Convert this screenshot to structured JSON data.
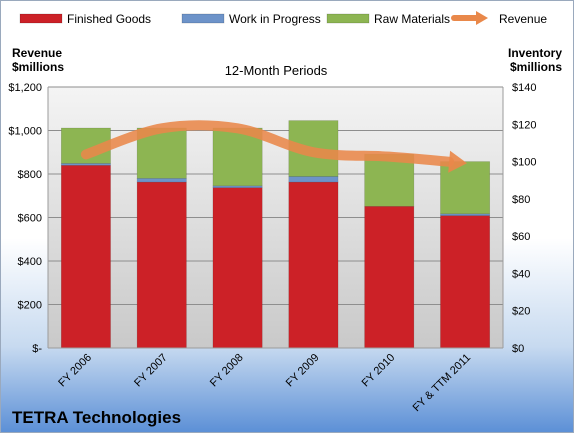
{
  "chart_data": {
    "type": "bar",
    "subtitle": "12-Month Periods",
    "company": "TETRA Technologies",
    "left_axis_label_line1": "Revenue",
    "left_axis_label_line2": "$millions",
    "right_axis_label_line1": "Inventory",
    "right_axis_label_line2": "$millions",
    "categories": [
      "FY 2006",
      "FY 2007",
      "FY 2008",
      "FY 2009",
      "FY 2010",
      "FY & TTM 2011"
    ],
    "stacked": true,
    "series": [
      {
        "name": "Finished Goods",
        "axis": "right",
        "color": "#cc2127",
        "values": [
          98,
          89,
          86,
          89,
          76,
          71
        ]
      },
      {
        "name": "Work in Progress",
        "axis": "right",
        "color": "#6d93c9",
        "values": [
          1,
          2,
          1,
          3,
          0,
          1
        ]
      },
      {
        "name": "Raw Materials",
        "axis": "right",
        "color": "#8db552",
        "values": [
          19,
          27,
          31,
          30,
          28,
          28
        ]
      }
    ],
    "line_series": {
      "name": "Revenue",
      "axis": "left",
      "color": "#e9884a",
      "values": [
        890,
        1010,
        1010,
        900,
        880,
        850
      ]
    },
    "left_axis": {
      "min": 0,
      "max": 1200,
      "ticks": [
        "$-",
        "$200",
        "$400",
        "$600",
        "$800",
        "$1,000",
        "$1,200"
      ]
    },
    "right_axis": {
      "min": 0,
      "max": 140,
      "ticks": [
        "$0",
        "$20",
        "$40",
        "$60",
        "$80",
        "$100",
        "$120",
        "$140"
      ]
    },
    "grid": true,
    "legend_position": "top"
  }
}
